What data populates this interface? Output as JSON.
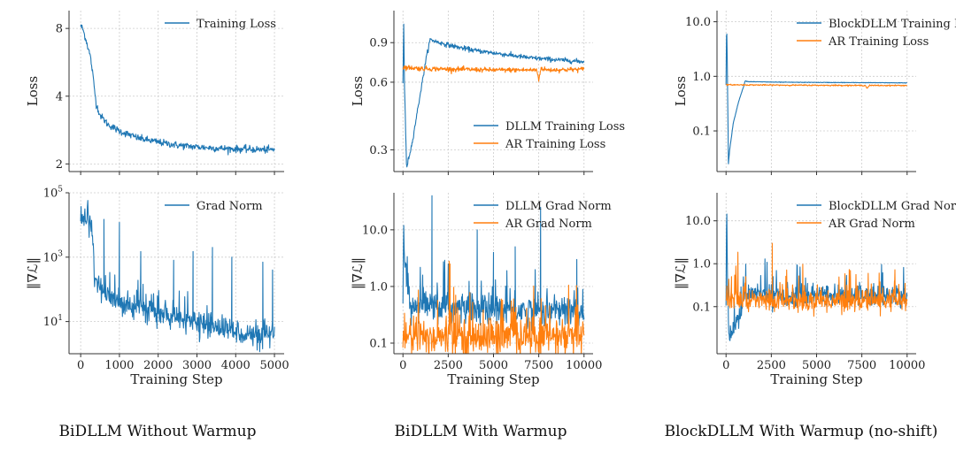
{
  "captions": [
    "BiDLLM Without Warmup",
    "BiDLLM With Warmup",
    "BlockDLLM With Warmup (no-shift)"
  ],
  "colors": {
    "blue": "#1f77b4",
    "orange": "#ff7f0e",
    "grid": "#cccccc",
    "axis": "#333333"
  },
  "chart_data": [
    {
      "id": "bidllm-nowarm-loss",
      "type": "line",
      "title": "",
      "xlabel": "",
      "ylabel": "Loss",
      "yscale": "log",
      "xlim": [
        -300,
        5250
      ],
      "ylim": [
        1.85,
        9.6
      ],
      "xticks": [
        0,
        1000,
        2000,
        3000,
        4000,
        5000
      ],
      "xtick_labels": [],
      "yticks": [
        2,
        4,
        8
      ],
      "ytick_labels": [
        "2",
        "4",
        "8"
      ],
      "legend": "top-right",
      "series": [
        {
          "name": "Training Loss",
          "color": "#1f77b4",
          "noise": 0.018,
          "x": [
            0,
            50,
            150,
            250,
            300,
            350,
            400,
            500,
            700,
            1000,
            1500,
            2000,
            2500,
            3000,
            3500,
            4000,
            4500,
            5000
          ],
          "y": [
            8.2,
            8.0,
            7.0,
            6.0,
            5.2,
            4.4,
            3.7,
            3.3,
            3.0,
            2.8,
            2.6,
            2.5,
            2.42,
            2.38,
            2.35,
            2.33,
            2.32,
            2.31
          ]
        }
      ]
    },
    {
      "id": "bidllm-warm-loss",
      "type": "line",
      "title": "",
      "xlabel": "",
      "ylabel": "Loss",
      "yscale": "log",
      "xlim": [
        -500,
        10500
      ],
      "ylim": [
        0.24,
        1.25
      ],
      "xticks": [
        0,
        2500,
        5000,
        7500,
        10000
      ],
      "xtick_labels": [],
      "yticks": [
        0.3,
        0.6,
        0.9
      ],
      "ytick_labels": [
        "0.3",
        "0.6",
        "0.9"
      ],
      "legend": "bottom-right",
      "series": [
        {
          "name": "DLLM Training Loss",
          "color": "#1f77b4",
          "noise": 0.012,
          "x": [
            0,
            40,
            80,
            200,
            500,
            900,
            1300,
            1500,
            2000,
            3000,
            4000,
            5000,
            6000,
            7000,
            8000,
            9000,
            10000
          ],
          "y": [
            0.6,
            1.15,
            0.6,
            0.25,
            0.32,
            0.5,
            0.78,
            0.93,
            0.9,
            0.86,
            0.83,
            0.81,
            0.79,
            0.77,
            0.76,
            0.75,
            0.74
          ]
        },
        {
          "name": "AR Training Loss",
          "color": "#ff7f0e",
          "noise": 0.012,
          "x": [
            0,
            1000,
            3000,
            5000,
            7000,
            7400,
            7500,
            7600,
            8000,
            10000
          ],
          "y": [
            0.7,
            0.69,
            0.685,
            0.68,
            0.68,
            0.68,
            0.61,
            0.69,
            0.68,
            0.685
          ]
        }
      ]
    },
    {
      "id": "blockdllm-loss",
      "type": "line",
      "title": "",
      "xlabel": "",
      "ylabel": "Loss",
      "yscale": "log",
      "xlim": [
        -500,
        10500
      ],
      "ylim": [
        0.018,
        16
      ],
      "xticks": [
        0,
        2500,
        5000,
        7500,
        10000
      ],
      "xtick_labels": [],
      "yticks": [
        0.1,
        1.0,
        10.0
      ],
      "ytick_labels": [
        "0.1",
        "1.0",
        "10.0"
      ],
      "legend": "top-right",
      "series": [
        {
          "name": "BlockDLLM Training Loss",
          "color": "#1f77b4",
          "noise": 0.006,
          "x": [
            0,
            30,
            70,
            130,
            200,
            400,
            700,
            1000,
            1050,
            1200,
            3000,
            6000,
            10000
          ],
          "y": [
            0.7,
            12.0,
            1.5,
            0.025,
            0.045,
            0.14,
            0.35,
            0.7,
            0.83,
            0.8,
            0.78,
            0.77,
            0.76
          ]
        },
        {
          "name": "AR Training Loss",
          "color": "#ff7f0e",
          "noise": 0.012,
          "x": [
            0,
            3000,
            7700,
            7800,
            7900,
            10000
          ],
          "y": [
            0.7,
            0.69,
            0.68,
            0.6,
            0.68,
            0.68
          ]
        }
      ]
    },
    {
      "id": "bidllm-nowarm-grad",
      "type": "line",
      "title": "",
      "xlabel": "Training Step",
      "ylabel": "‖∇ℒ‖",
      "yscale": "log",
      "xlim": [
        -300,
        5250
      ],
      "ylim": [
        1,
        100000
      ],
      "xticks": [
        0,
        1000,
        2000,
        3000,
        4000,
        5000
      ],
      "xtick_labels": [
        "0",
        "1000",
        "2000",
        "3000",
        "4000",
        "5000"
      ],
      "yticks": [
        10,
        1000,
        100000
      ],
      "ytick_labels": [
        "10^1",
        "10^3",
        "10^5"
      ],
      "legend": "top-right",
      "series": [
        {
          "name": "Grad Norm",
          "color": "#1f77b4",
          "noise": 0.42,
          "x": [
            0,
            100,
            200,
            300,
            350,
            450,
            600,
            1000,
            1500,
            2000,
            2500,
            3000,
            3500,
            4000,
            4500,
            5000
          ],
          "y": [
            12000,
            15000,
            12000,
            8000,
            400,
            120,
            70,
            40,
            30,
            18,
            12,
            9,
            7,
            5,
            3.5,
            3
          ],
          "spikes": [
            [
              600,
              15000
            ],
            [
              1000,
              12000
            ],
            [
              1550,
              1500
            ],
            [
              2400,
              800
            ],
            [
              2900,
              1500
            ],
            [
              3400,
              2000
            ],
            [
              3900,
              1000
            ],
            [
              4700,
              700
            ],
            [
              4950,
              400
            ]
          ]
        }
      ]
    },
    {
      "id": "bidllm-warm-grad",
      "type": "line",
      "title": "",
      "xlabel": "Training Step",
      "ylabel": "‖∇ℒ‖",
      "yscale": "log",
      "xlim": [
        -500,
        10500
      ],
      "ylim": [
        0.065,
        45
      ],
      "xticks": [
        0,
        2500,
        5000,
        7500,
        10000
      ],
      "xtick_labels": [
        "0",
        "2500",
        "5000",
        "7500",
        "10000"
      ],
      "yticks": [
        0.1,
        1.0,
        10.0
      ],
      "ytick_labels": [
        "0.1",
        "1.0",
        "10.0"
      ],
      "legend": "top-right",
      "series": [
        {
          "name": "DLLM Grad Norm",
          "color": "#1f77b4",
          "noise": 0.32,
          "x": [
            0,
            30,
            100,
            300,
            500,
            700,
            1000,
            2000,
            4000,
            6000,
            8000,
            10000
          ],
          "y": [
            0.5,
            15,
            2.5,
            0.8,
            0.3,
            0.4,
            0.45,
            0.42,
            0.4,
            0.38,
            0.37,
            0.37
          ],
          "spikes": [
            [
              1600,
              40
            ],
            [
              2500,
              2.5
            ],
            [
              4100,
              10
            ],
            [
              5000,
              4
            ],
            [
              6200,
              5
            ],
            [
              7600,
              25
            ],
            [
              9600,
              3
            ]
          ]
        },
        {
          "name": "AR Grad Norm",
          "color": "#ff7f0e",
          "noise": 0.4,
          "x": [
            0,
            2000,
            5000,
            8000,
            10000
          ],
          "y": [
            0.13,
            0.13,
            0.13,
            0.13,
            0.13
          ],
          "spikes": [
            [
              2550,
              2.8
            ],
            [
              2600,
              2.5
            ]
          ]
        }
      ]
    },
    {
      "id": "blockdllm-grad",
      "type": "line",
      "title": "",
      "xlabel": "Training Step",
      "ylabel": "‖∇ℒ‖",
      "yscale": "log",
      "xlim": [
        -500,
        10500
      ],
      "ylim": [
        0.008,
        45
      ],
      "xticks": [
        0,
        2500,
        5000,
        7500,
        10000
      ],
      "xtick_labels": [
        "0",
        "2500",
        "5000",
        "7500",
        "10000"
      ],
      "yticks": [
        0.1,
        1.0,
        10.0
      ],
      "ytick_labels": [
        "0.1",
        "1.0",
        "10.0"
      ],
      "legend": "top-right",
      "series": [
        {
          "name": "BlockDLLM Grad Norm",
          "color": "#1f77b4",
          "noise": 0.28,
          "x": [
            0,
            30,
            80,
            150,
            400,
            700,
            1000,
            1100,
            3000,
            6000,
            10000
          ],
          "y": [
            0.1,
            30,
            0.5,
            0.02,
            0.03,
            0.06,
            0.15,
            0.2,
            0.19,
            0.18,
            0.18
          ],
          "spikes": [
            [
              2600,
              0.5
            ],
            [
              4500,
              0.35
            ],
            [
              7300,
              0.3
            ]
          ]
        },
        {
          "name": "AR Grad Norm",
          "color": "#ff7f0e",
          "noise": 0.3,
          "x": [
            0,
            2000,
            5000,
            8000,
            10000
          ],
          "y": [
            0.14,
            0.14,
            0.14,
            0.14,
            0.14
          ],
          "spikes": [
            [
              2550,
              3.0
            ],
            [
              300,
              0.5
            ],
            [
              9300,
              0.4
            ]
          ]
        }
      ]
    }
  ]
}
